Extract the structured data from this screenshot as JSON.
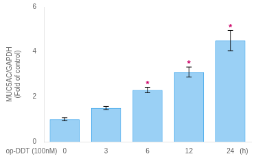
{
  "chart_data": {
    "type": "bar",
    "categories": [
      "0",
      "3",
      "6",
      "12",
      "24"
    ],
    "values": [
      1.0,
      1.5,
      2.3,
      3.1,
      4.5
    ],
    "errors": [
      0.07,
      0.07,
      0.12,
      0.22,
      0.45
    ],
    "ylabel": "MUC5AC/GAPDH\n(Fold of control)",
    "xlabel": "op-DDT (100nM)",
    "xlabel_suffix": "(h)",
    "annotations": [
      {
        "category": "6",
        "text": "*",
        "color": "#cc0066"
      },
      {
        "category": "12",
        "text": "*",
        "color": "#cc0066"
      },
      {
        "category": "24",
        "text": "*",
        "color": "#cc0066"
      }
    ],
    "ylim": [
      0,
      6
    ],
    "yticks": [
      0,
      2,
      4,
      6
    ],
    "grid": false
  }
}
